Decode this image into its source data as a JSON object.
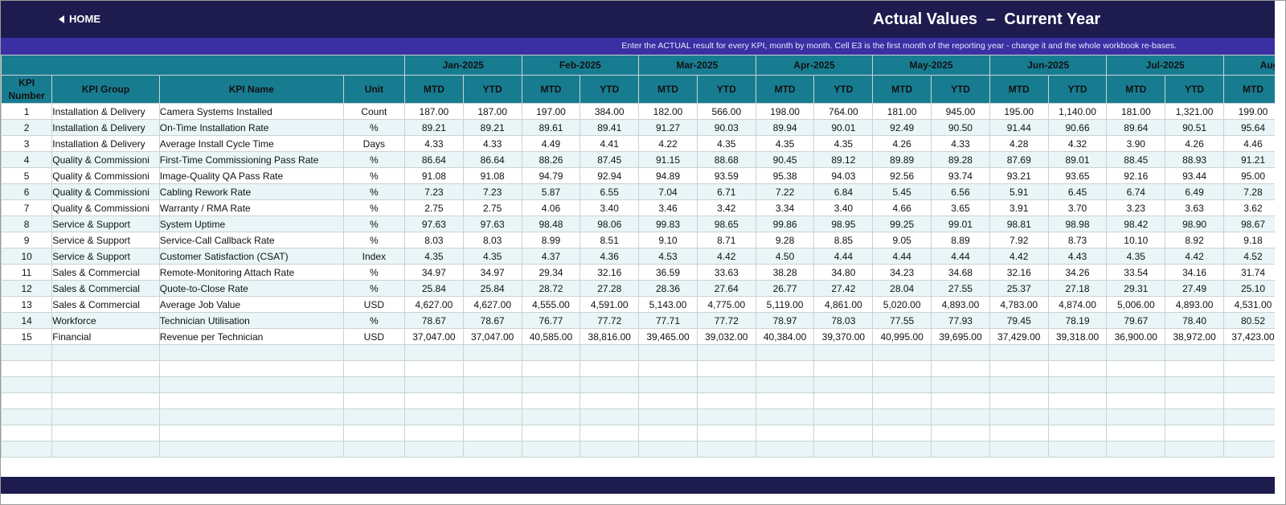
{
  "header": {
    "home_label": "HOME",
    "title": "Actual Values  –  Current Year",
    "instruction": "Enter the ACTUAL result for every KPI, month by month. Cell E3 is the first month of the reporting year - change it and the whole workbook re-bases."
  },
  "colors": {
    "header_bar": "#1e1b4f",
    "sub_bar": "#3b2fa3",
    "table_header": "#187c91",
    "row_alt": "#e9f5f6"
  },
  "columns": {
    "kpi_number_line1": "KPI",
    "kpi_number_line2": "Number",
    "kpi_group": "KPI Group",
    "kpi_name": "KPI Name",
    "unit": "Unit",
    "mtd": "MTD",
    "ytd": "YTD"
  },
  "months": [
    "Jan-2025",
    "Feb-2025",
    "Mar-2025",
    "Apr-2025",
    "May-2025",
    "Jun-2025",
    "Jul-2025",
    "Aug-"
  ],
  "rows": [
    {
      "num": "1",
      "group": "Installation & Delivery",
      "name": "Camera Systems Installed",
      "unit": "Count",
      "v": [
        "187.00",
        "187.00",
        "197.00",
        "384.00",
        "182.00",
        "566.00",
        "198.00",
        "764.00",
        "181.00",
        "945.00",
        "195.00",
        "1,140.00",
        "181.00",
        "1,321.00",
        "199.00"
      ]
    },
    {
      "num": "2",
      "group": "Installation & Delivery",
      "name": "On-Time Installation Rate",
      "unit": "%",
      "v": [
        "89.21",
        "89.21",
        "89.61",
        "89.41",
        "91.27",
        "90.03",
        "89.94",
        "90.01",
        "92.49",
        "90.50",
        "91.44",
        "90.66",
        "89.64",
        "90.51",
        "95.64"
      ]
    },
    {
      "num": "3",
      "group": "Installation & Delivery",
      "name": "Average Install Cycle Time",
      "unit": "Days",
      "v": [
        "4.33",
        "4.33",
        "4.49",
        "4.41",
        "4.22",
        "4.35",
        "4.35",
        "4.35",
        "4.26",
        "4.33",
        "4.28",
        "4.32",
        "3.90",
        "4.26",
        "4.46"
      ]
    },
    {
      "num": "4",
      "group": "Quality & Commissioni",
      "name": "First-Time Commissioning Pass Rate",
      "unit": "%",
      "v": [
        "86.64",
        "86.64",
        "88.26",
        "87.45",
        "91.15",
        "88.68",
        "90.45",
        "89.12",
        "89.89",
        "89.28",
        "87.69",
        "89.01",
        "88.45",
        "88.93",
        "91.21"
      ]
    },
    {
      "num": "5",
      "group": "Quality & Commissioni",
      "name": "Image-Quality QA Pass Rate",
      "unit": "%",
      "v": [
        "91.08",
        "91.08",
        "94.79",
        "92.94",
        "94.89",
        "93.59",
        "95.38",
        "94.03",
        "92.56",
        "93.74",
        "93.21",
        "93.65",
        "92.16",
        "93.44",
        "95.00"
      ]
    },
    {
      "num": "6",
      "group": "Quality & Commissioni",
      "name": "Cabling Rework Rate",
      "unit": "%",
      "v": [
        "7.23",
        "7.23",
        "5.87",
        "6.55",
        "7.04",
        "6.71",
        "7.22",
        "6.84",
        "5.45",
        "6.56",
        "5.91",
        "6.45",
        "6.74",
        "6.49",
        "7.28"
      ]
    },
    {
      "num": "7",
      "group": "Quality & Commissioni",
      "name": "Warranty / RMA Rate",
      "unit": "%",
      "v": [
        "2.75",
        "2.75",
        "4.06",
        "3.40",
        "3.46",
        "3.42",
        "3.34",
        "3.40",
        "4.66",
        "3.65",
        "3.91",
        "3.70",
        "3.23",
        "3.63",
        "3.62"
      ]
    },
    {
      "num": "8",
      "group": "Service & Support",
      "name": "System Uptime",
      "unit": "%",
      "v": [
        "97.63",
        "97.63",
        "98.48",
        "98.06",
        "99.83",
        "98.65",
        "99.86",
        "98.95",
        "99.25",
        "99.01",
        "98.81",
        "98.98",
        "98.42",
        "98.90",
        "98.67"
      ]
    },
    {
      "num": "9",
      "group": "Service & Support",
      "name": "Service-Call Callback Rate",
      "unit": "%",
      "v": [
        "8.03",
        "8.03",
        "8.99",
        "8.51",
        "9.10",
        "8.71",
        "9.28",
        "8.85",
        "9.05",
        "8.89",
        "7.92",
        "8.73",
        "10.10",
        "8.92",
        "9.18"
      ]
    },
    {
      "num": "10",
      "group": "Service & Support",
      "name": "Customer Satisfaction (CSAT)",
      "unit": "Index",
      "v": [
        "4.35",
        "4.35",
        "4.37",
        "4.36",
        "4.53",
        "4.42",
        "4.50",
        "4.44",
        "4.44",
        "4.44",
        "4.42",
        "4.43",
        "4.35",
        "4.42",
        "4.52"
      ]
    },
    {
      "num": "11",
      "group": "Sales & Commercial",
      "name": "Remote-Monitoring Attach Rate",
      "unit": "%",
      "v": [
        "34.97",
        "34.97",
        "29.34",
        "32.16",
        "36.59",
        "33.63",
        "38.28",
        "34.80",
        "34.23",
        "34.68",
        "32.16",
        "34.26",
        "33.54",
        "34.16",
        "31.74"
      ]
    },
    {
      "num": "12",
      "group": "Sales & Commercial",
      "name": "Quote-to-Close Rate",
      "unit": "%",
      "v": [
        "25.84",
        "25.84",
        "28.72",
        "27.28",
        "28.36",
        "27.64",
        "26.77",
        "27.42",
        "28.04",
        "27.55",
        "25.37",
        "27.18",
        "29.31",
        "27.49",
        "25.10"
      ]
    },
    {
      "num": "13",
      "group": "Sales & Commercial",
      "name": "Average Job Value",
      "unit": "USD",
      "v": [
        "4,627.00",
        "4,627.00",
        "4,555.00",
        "4,591.00",
        "5,143.00",
        "4,775.00",
        "5,119.00",
        "4,861.00",
        "5,020.00",
        "4,893.00",
        "4,783.00",
        "4,874.00",
        "5,006.00",
        "4,893.00",
        "4,531.00"
      ]
    },
    {
      "num": "14",
      "group": "Workforce",
      "name": "Technician Utilisation",
      "unit": "%",
      "v": [
        "78.67",
        "78.67",
        "76.77",
        "77.72",
        "77.71",
        "77.72",
        "78.97",
        "78.03",
        "77.55",
        "77.93",
        "79.45",
        "78.19",
        "79.67",
        "78.40",
        "80.52"
      ]
    },
    {
      "num": "15",
      "group": "Financial",
      "name": "Revenue per Technician",
      "unit": "USD",
      "v": [
        "37,047.00",
        "37,047.00",
        "40,585.00",
        "38,816.00",
        "39,465.00",
        "39,032.00",
        "40,384.00",
        "39,370.00",
        "40,995.00",
        "39,695.00",
        "37,429.00",
        "39,318.00",
        "36,900.00",
        "38,972.00",
        "37,423.00"
      ]
    }
  ]
}
